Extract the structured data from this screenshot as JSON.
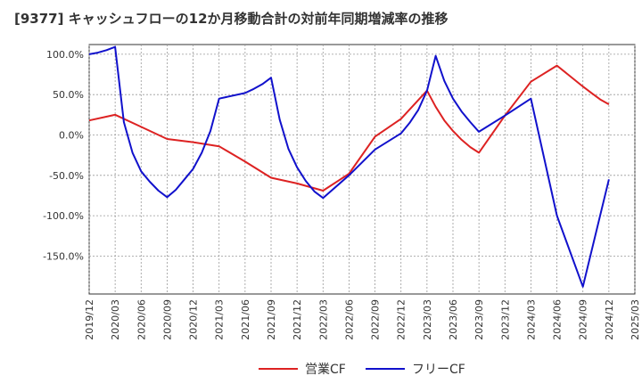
{
  "title": "[9377]  キャッシュフローの12か月移動合計の対前年同期増減率の推移",
  "chart_data": {
    "type": "line",
    "y_ticks": [
      "100.0%",
      "50.0%",
      "0.0%",
      "-50.0%",
      "-100.0%",
      "-150.0%"
    ],
    "y_tick_values": [
      100,
      50,
      0,
      -50,
      -100,
      -150
    ],
    "ylim": [
      -197,
      112
    ],
    "x_ticks": [
      "2019/12",
      "2020/03",
      "2020/06",
      "2020/09",
      "2020/12",
      "2021/03",
      "2021/06",
      "2021/09",
      "2021/12",
      "2022/03",
      "2022/06",
      "2022/09",
      "2022/12",
      "2023/03",
      "2023/06",
      "2023/09",
      "2023/12",
      "2024/03",
      "2024/06",
      "2024/09",
      "2024/12",
      "2025/03"
    ],
    "grid": true,
    "series": [
      {
        "name": "営業CF",
        "color": "#dd2222",
        "x": [
          "2019/12",
          "2020/03",
          "2020/06",
          "2020/09",
          "2020/12",
          "2021/03",
          "2021/06",
          "2021/09",
          "2021/12",
          "2022/03",
          "2022/06",
          "2022/09",
          "2022/12",
          "2023/03",
          "2023/04",
          "2023/05",
          "2023/06",
          "2023/07",
          "2023/08",
          "2023/09",
          "2023/12",
          "2024/03",
          "2024/06",
          "2024/09",
          "2024/10",
          "2024/11",
          "2024/12"
        ],
        "values": [
          18,
          25,
          10,
          -5,
          -9,
          -14,
          -33,
          -53,
          -60,
          -69,
          -48,
          -2,
          20,
          55,
          35,
          18,
          5,
          -6,
          -15,
          -22,
          24,
          66,
          86,
          60,
          52,
          44,
          38
        ]
      },
      {
        "name": "フリーCF",
        "color": "#1111cc",
        "x": [
          "2019/12",
          "2020/01",
          "2020/02",
          "2020/03",
          "2020/04",
          "2020/05",
          "2020/06",
          "2020/07",
          "2020/08",
          "2020/09",
          "2020/10",
          "2020/11",
          "2020/12",
          "2021/01",
          "2021/02",
          "2021/03",
          "2021/06",
          "2021/07",
          "2021/08",
          "2021/09",
          "2021/10",
          "2021/11",
          "2021/12",
          "2022/01",
          "2022/02",
          "2022/03",
          "2022/06",
          "2022/09",
          "2022/12",
          "2023/01",
          "2023/02",
          "2023/03",
          "2023/04",
          "2023/05",
          "2023/06",
          "2023/07",
          "2023/08",
          "2023/09",
          "2023/12",
          "2024/03",
          "2024/06",
          "2024/09",
          "2024/12"
        ],
        "values": [
          100,
          102,
          105,
          109,
          16,
          -22,
          -45,
          -58,
          -69,
          -77,
          -68,
          -55,
          -42,
          -22,
          5,
          45,
          52,
          57,
          63,
          71,
          19,
          -17,
          -40,
          -57,
          -70,
          -78,
          -50,
          -18,
          2,
          15,
          31,
          55,
          98,
          67,
          45,
          29,
          16,
          4,
          24,
          45,
          -100,
          -188,
          -55
        ]
      }
    ]
  }
}
